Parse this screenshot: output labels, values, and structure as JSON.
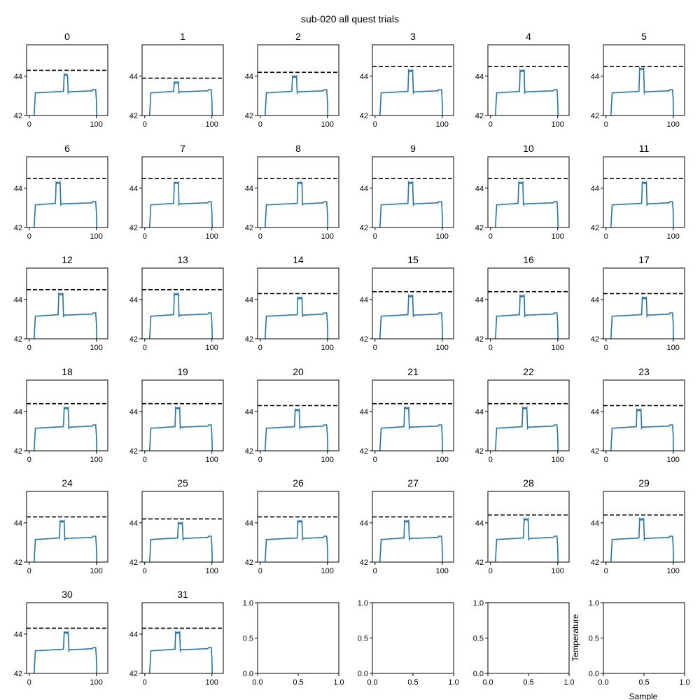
{
  "figure_title": "sub-020 all quest trials",
  "colors": {
    "trace": "#1f77b4",
    "threshold": "#000000",
    "axes": "#000000"
  },
  "shared_axes": {
    "x_ticks": [
      0,
      100
    ],
    "y_ticks": [
      42,
      44
    ],
    "xlim": [
      -4,
      117
    ],
    "ylim": [
      42,
      45.6
    ],
    "empty_ticks": [
      "0.0",
      "0.5",
      "1.0"
    ],
    "xlabel": "Sample",
    "ylabel": "Temperature"
  },
  "chart_data": {
    "type": "line",
    "x_range": [
      0,
      103
    ],
    "trials": [
      {
        "title": "0",
        "threshold": 44.3,
        "peak": 44.1,
        "plateau": 43.3,
        "pulse": [
          52,
          57
        ]
      },
      {
        "title": "1",
        "threshold": 43.9,
        "peak": 43.7,
        "plateau": 43.3,
        "pulse": [
          44,
          50
        ]
      },
      {
        "title": "2",
        "threshold": 44.2,
        "peak": 44.0,
        "plateau": 43.3,
        "pulse": [
          48,
          54
        ]
      },
      {
        "title": "3",
        "threshold": 44.5,
        "peak": 44.3,
        "plateau": 43.3,
        "pulse": [
          50,
          56
        ]
      },
      {
        "title": "4",
        "threshold": 44.5,
        "peak": 44.3,
        "plateau": 43.3,
        "pulse": [
          44,
          50
        ]
      },
      {
        "title": "5",
        "threshold": 44.5,
        "peak": 44.4,
        "plateau": 43.3,
        "pulse": [
          50,
          56
        ]
      },
      {
        "title": "6",
        "threshold": 44.5,
        "peak": 44.3,
        "plateau": 43.3,
        "pulse": [
          40,
          46
        ]
      },
      {
        "title": "7",
        "threshold": 44.5,
        "peak": 44.3,
        "plateau": 43.3,
        "pulse": [
          44,
          50
        ]
      },
      {
        "title": "8",
        "threshold": 44.5,
        "peak": 44.3,
        "plateau": 43.3,
        "pulse": [
          56,
          62
        ]
      },
      {
        "title": "9",
        "threshold": 44.5,
        "peak": 44.3,
        "plateau": 43.3,
        "pulse": [
          50,
          56
        ]
      },
      {
        "title": "10",
        "threshold": 44.5,
        "peak": 44.3,
        "plateau": 43.3,
        "pulse": [
          42,
          48
        ]
      },
      {
        "title": "11",
        "threshold": 44.5,
        "peak": 44.3,
        "plateau": 43.3,
        "pulse": [
          54,
          60
        ]
      },
      {
        "title": "12",
        "threshold": 44.5,
        "peak": 44.3,
        "plateau": 43.3,
        "pulse": [
          44,
          50
        ]
      },
      {
        "title": "13",
        "threshold": 44.5,
        "peak": 44.3,
        "plateau": 43.3,
        "pulse": [
          44,
          50
        ]
      },
      {
        "title": "14",
        "threshold": 44.3,
        "peak": 44.1,
        "plateau": 43.3,
        "pulse": [
          56,
          62
        ]
      },
      {
        "title": "15",
        "threshold": 44.4,
        "peak": 44.2,
        "plateau": 43.3,
        "pulse": [
          50,
          56
        ]
      },
      {
        "title": "16",
        "threshold": 44.4,
        "peak": 44.2,
        "plateau": 43.3,
        "pulse": [
          44,
          50
        ]
      },
      {
        "title": "17",
        "threshold": 44.3,
        "peak": 44.1,
        "plateau": 43.3,
        "pulse": [
          54,
          60
        ]
      },
      {
        "title": "18",
        "threshold": 44.4,
        "peak": 44.2,
        "plateau": 43.3,
        "pulse": [
          52,
          58
        ]
      },
      {
        "title": "19",
        "threshold": 44.4,
        "peak": 44.2,
        "plateau": 43.3,
        "pulse": [
          46,
          52
        ]
      },
      {
        "title": "20",
        "threshold": 44.3,
        "peak": 44.1,
        "plateau": 43.3,
        "pulse": [
          52,
          58
        ]
      },
      {
        "title": "21",
        "threshold": 44.4,
        "peak": 44.2,
        "plateau": 43.3,
        "pulse": [
          44,
          50
        ]
      },
      {
        "title": "22",
        "threshold": 44.4,
        "peak": 44.2,
        "plateau": 43.3,
        "pulse": [
          48,
          54
        ]
      },
      {
        "title": "23",
        "threshold": 44.3,
        "peak": 44.1,
        "plateau": 43.3,
        "pulse": [
          46,
          52
        ]
      },
      {
        "title": "24",
        "threshold": 44.3,
        "peak": 44.1,
        "plateau": 43.3,
        "pulse": [
          46,
          52
        ]
      },
      {
        "title": "25",
        "threshold": 44.2,
        "peak": 44.0,
        "plateau": 43.3,
        "pulse": [
          50,
          56
        ]
      },
      {
        "title": "26",
        "threshold": 44.3,
        "peak": 44.1,
        "plateau": 43.3,
        "pulse": [
          56,
          62
        ]
      },
      {
        "title": "27",
        "threshold": 44.3,
        "peak": 44.1,
        "plateau": 43.3,
        "pulse": [
          44,
          50
        ]
      },
      {
        "title": "28",
        "threshold": 44.4,
        "peak": 44.2,
        "plateau": 43.3,
        "pulse": [
          50,
          56
        ]
      },
      {
        "title": "29",
        "threshold": 44.4,
        "peak": 44.2,
        "plateau": 43.3,
        "pulse": [
          50,
          56
        ]
      },
      {
        "title": "30",
        "threshold": 44.3,
        "peak": 44.1,
        "plateau": 43.3,
        "pulse": [
          52,
          58
        ]
      },
      {
        "title": "31",
        "threshold": 44.3,
        "peak": 44.1,
        "plateau": 43.3,
        "pulse": [
          46,
          52
        ]
      }
    ],
    "empty_panels": 4
  }
}
